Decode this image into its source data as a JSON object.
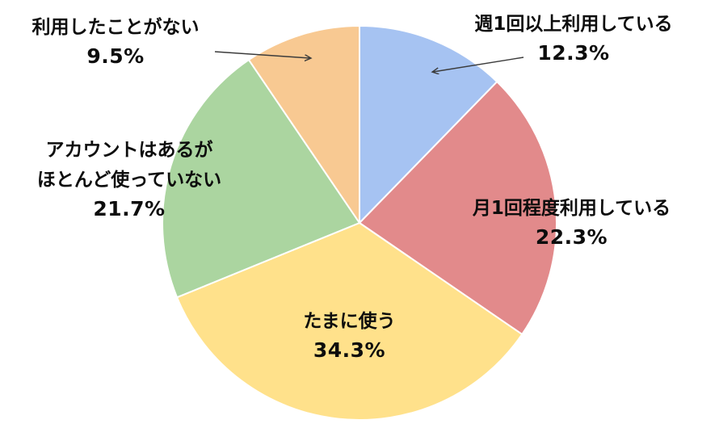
{
  "chart_data": {
    "type": "pie",
    "title": "",
    "legend": "none",
    "background": "#ffffff",
    "start_angle_deg": -90,
    "direction": "clockwise",
    "slices": [
      {
        "label": "週1回以上利用している",
        "value": 12.3,
        "pct_text": "12.3%",
        "color": "#a6c3f2"
      },
      {
        "label": "月1回程度利用している",
        "value": 22.3,
        "pct_text": "22.3%",
        "color": "#e28a8b"
      },
      {
        "label": "たまに使う",
        "value": 34.3,
        "pct_text": "34.3%",
        "color": "#ffe18b"
      },
      {
        "label": "アカウントはあるがほとんど使っていない",
        "value": 21.7,
        "pct_text": "21.7%",
        "color": "#abd5a0"
      },
      {
        "label": "利用したことがない",
        "value": 9.5,
        "pct_text": "9.5%",
        "color": "#f8c992"
      }
    ]
  },
  "callouts": {
    "never": {
      "line1": "利用したことがない",
      "pct": "9.5%"
    },
    "weekly": {
      "line1": "週1回以上利用している",
      "pct": "12.3%"
    },
    "account": {
      "line1": "アカウントはあるが",
      "line2": "ほとんど使っていない",
      "pct": "21.7%"
    },
    "monthly": {
      "line1": "月1回程度利用している",
      "pct": "22.3%"
    },
    "sometimes": {
      "line1": "たまに使う",
      "pct": "34.3%"
    }
  },
  "colors": {
    "text": "#0d0d0d",
    "arrow": "#3b3b3b",
    "slice_border": "#ffffff"
  }
}
